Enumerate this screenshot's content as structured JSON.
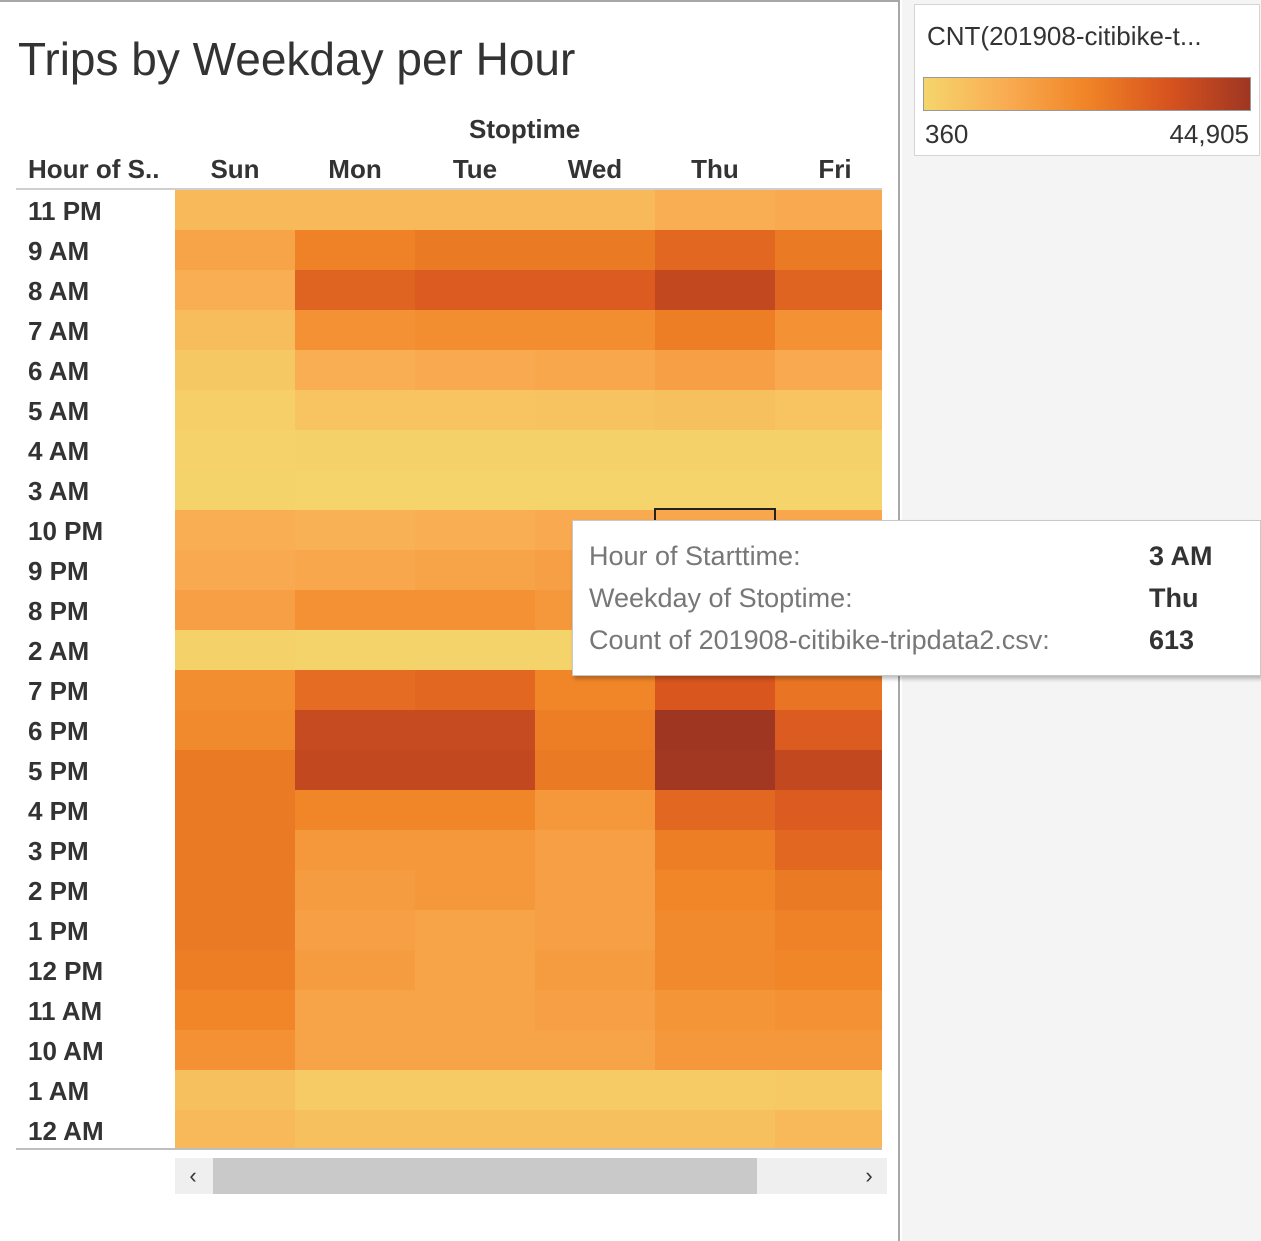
{
  "title": "Trips by Weekday per Hour",
  "column_group_label": "Stoptime",
  "row_header_label": "Hour of S..",
  "legend": {
    "title": "CNT(201908-citibike-t...",
    "min_label": "360",
    "max_label": "44,905",
    "colors": [
      "#f5d56c",
      "#f9ac52",
      "#f08426",
      "#d8531f",
      "#9e3622"
    ]
  },
  "tooltip": {
    "rows": [
      {
        "label": "Hour of Starttime:",
        "value": "3 AM"
      },
      {
        "label": "Weekday of Stoptime:",
        "value": "Thu"
      },
      {
        "label": "Count of 201908-citibike-tripdata2.csv:",
        "value": "613"
      }
    ]
  },
  "scroll": {
    "left_icon": "‹",
    "right_icon": "›"
  },
  "chart_data": {
    "type": "heatmap",
    "title": "Trips by Weekday per Hour",
    "x_group_label": "Stoptime",
    "y_label": "Hour of S..",
    "columns": [
      "Sun",
      "Mon",
      "Tue",
      "Wed",
      "Thu",
      "Fri"
    ],
    "rows": [
      "11 PM",
      "9 AM",
      "8 AM",
      "7 AM",
      "6 AM",
      "5 AM",
      "4 AM",
      "3 AM",
      "10 PM",
      "9 PM",
      "8 PM",
      "2 AM",
      "7 PM",
      "6 PM",
      "5 PM",
      "4 PM",
      "3 PM",
      "2 PM",
      "1 PM",
      "12 PM",
      "11 AM",
      "10 AM",
      "1 AM",
      "12 AM"
    ],
    "values": [
      [
        8000,
        8000,
        8000,
        8000,
        11000,
        12000
      ],
      [
        14000,
        23000,
        25000,
        25000,
        29000,
        25000
      ],
      [
        11000,
        30000,
        32000,
        32000,
        38000,
        30000
      ],
      [
        7000,
        19000,
        20000,
        20000,
        24000,
        19000
      ],
      [
        4000,
        11000,
        12000,
        13000,
        15000,
        12000
      ],
      [
        2000,
        5000,
        5000,
        5500,
        6000,
        5000
      ],
      [
        1200,
        1500,
        1500,
        1500,
        1500,
        1500
      ],
      [
        900,
        600,
        600,
        600,
        613,
        600
      ],
      [
        11000,
        10000,
        11000,
        12000,
        13000,
        13000
      ],
      [
        12000,
        13000,
        14000,
        15000,
        16000,
        16000
      ],
      [
        15000,
        19000,
        19000,
        17000,
        20000,
        20000
      ],
      [
        1500,
        1000,
        1000,
        1000,
        1000,
        1500
      ],
      [
        20000,
        28000,
        29000,
        22000,
        33000,
        26000
      ],
      [
        21000,
        37000,
        37000,
        24000,
        44905,
        32000
      ],
      [
        25000,
        38000,
        38000,
        25000,
        44000,
        38000
      ],
      [
        25000,
        22000,
        22000,
        17000,
        29000,
        32000
      ],
      [
        25000,
        17000,
        17000,
        15000,
        24000,
        29000
      ],
      [
        25000,
        16000,
        17000,
        15000,
        22000,
        25000
      ],
      [
        25000,
        15000,
        14000,
        15000,
        21000,
        23000
      ],
      [
        24000,
        16000,
        14000,
        16000,
        21000,
        22000
      ],
      [
        22000,
        14000,
        14000,
        15000,
        18000,
        19000
      ],
      [
        19000,
        14000,
        14000,
        14000,
        17000,
        17000
      ],
      [
        6000,
        3000,
        3000,
        3000,
        3000,
        3500
      ],
      [
        8000,
        6000,
        6000,
        6000,
        6000,
        8000
      ]
    ],
    "color_range": [
      360,
      44905
    ]
  }
}
